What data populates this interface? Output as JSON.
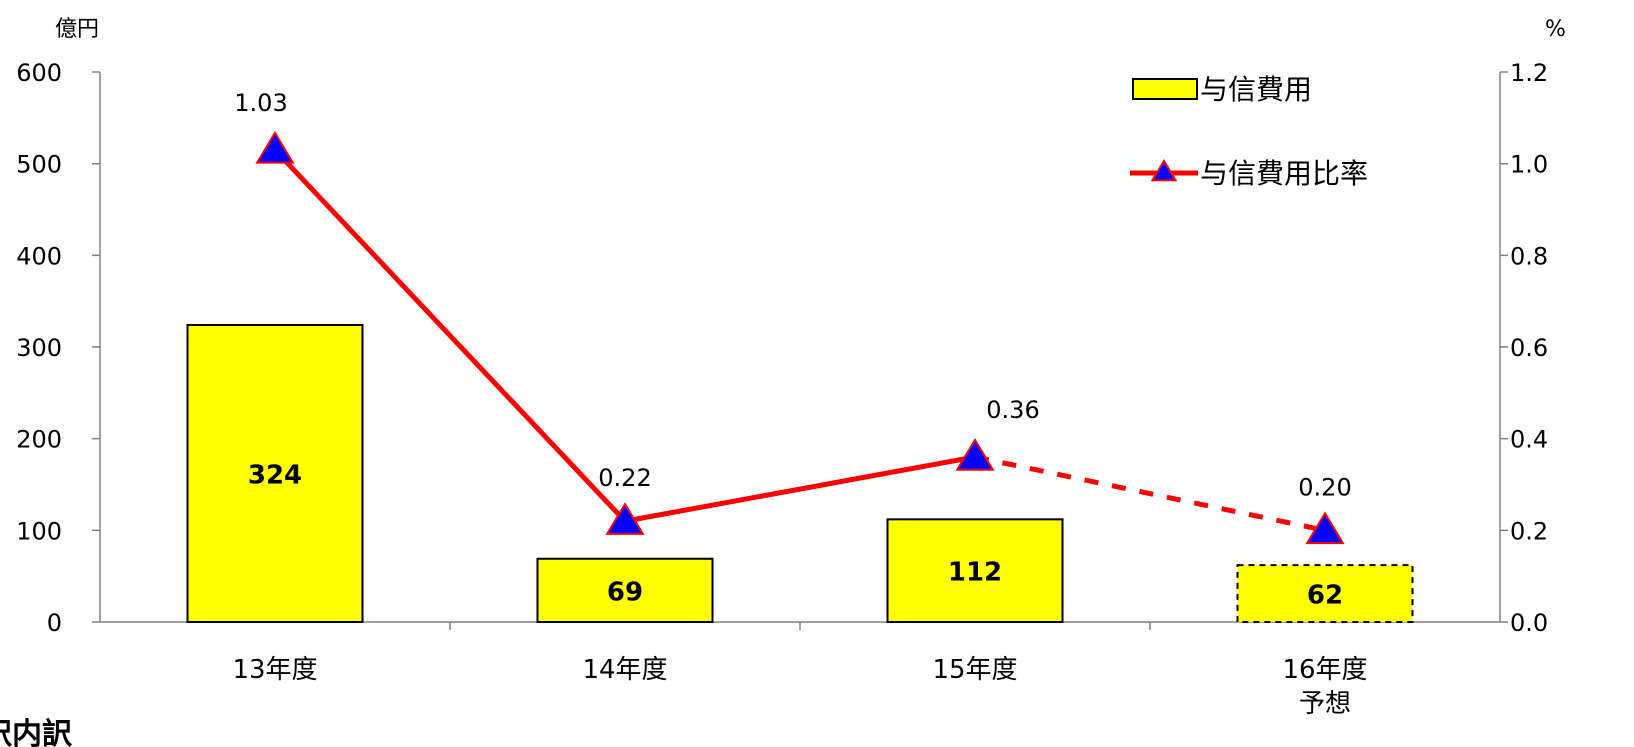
{
  "footer_text": "訳内訳",
  "chart_data": {
    "type": "bar",
    "categories": [
      {
        "line1": "13年度",
        "line2": ""
      },
      {
        "line1": "14年度",
        "line2": ""
      },
      {
        "line1": "15年度",
        "line2": ""
      },
      {
        "line1": "16年度",
        "line2": "予想"
      }
    ],
    "series": [
      {
        "name": "与信費用",
        "kind": "bar",
        "axis": "left",
        "values": [
          324,
          69,
          112,
          62
        ],
        "labels": [
          "324",
          "69",
          "112",
          "62"
        ],
        "forecast_from_index": 3,
        "color": "#ffff00",
        "border_color": "#000000"
      },
      {
        "name": "与信費用比率",
        "kind": "line",
        "axis": "right",
        "values": [
          1.03,
          0.22,
          0.36,
          0.2
        ],
        "labels": [
          "1.03",
          "0.22",
          "0.36",
          "0.20"
        ],
        "forecast_from_index": 2,
        "line_color": "#ff0000",
        "marker": "triangle",
        "marker_fill": "#0000ff"
      }
    ],
    "left_axis": {
      "unit": "億円",
      "min": 0,
      "max": 600,
      "ticks": [
        "0",
        "100",
        "200",
        "300",
        "400",
        "500",
        "600"
      ]
    },
    "right_axis": {
      "unit": "%",
      "min": 0,
      "max": 1.2,
      "ticks": [
        "0.0",
        "0.2",
        "0.4",
        "0.6",
        "0.8",
        "1.0",
        "1.2"
      ]
    },
    "legend_position": "top-right",
    "grid": false
  }
}
